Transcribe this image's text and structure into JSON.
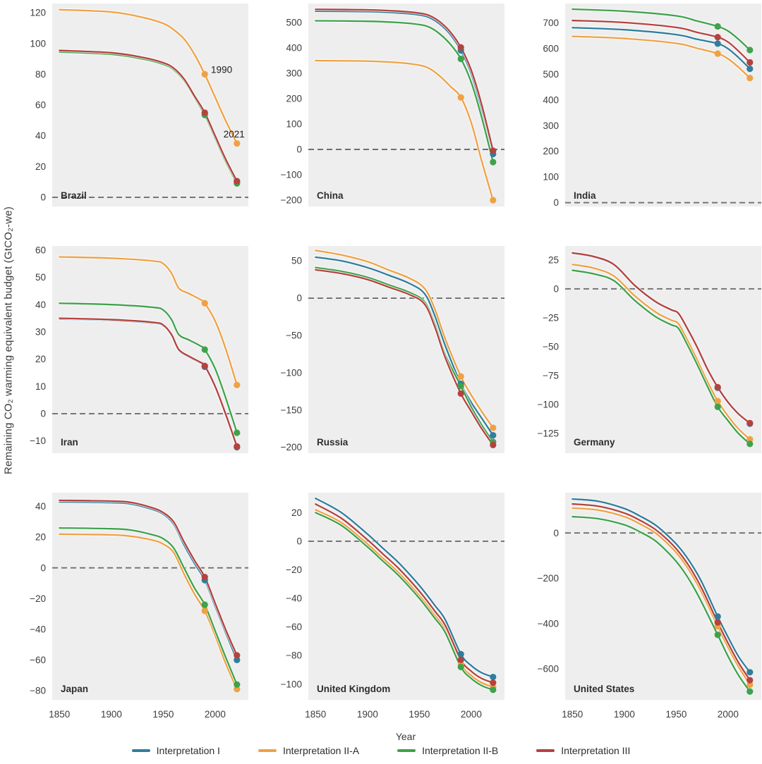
{
  "figure": {
    "ylabel": "Remaining CO₂ warming equivalent budget (GtCO₂-we)",
    "xlabel": "Year"
  },
  "legend": {
    "position": "bottom-center",
    "entries": [
      {
        "label": "Interpretation I",
        "color": "#2f7e9d"
      },
      {
        "label": "Interpretation II-A",
        "color": "#efa143"
      },
      {
        "label": "Interpretation II-B",
        "color": "#3fa24c"
      },
      {
        "label": "Interpretation III",
        "color": "#b5423e"
      }
    ]
  },
  "chart_data": {
    "type": "line",
    "layout": "3x3 small multiples",
    "xlabel": "Year",
    "ylabel": "Remaining CO₂ warming equivalent budget (GtCO₂-we)",
    "xlim": [
      1843,
      2032
    ],
    "xticks": [
      1850,
      1900,
      1950,
      2000
    ],
    "marker_years": [
      1990,
      2021
    ],
    "grid": false,
    "panel_bg": "#eeeeef",
    "zero_line_color": "#6e6e6e",
    "series_meta": [
      {
        "key": "I",
        "label": "Interpretation I",
        "color": "#2f7e9d"
      },
      {
        "key": "II-A",
        "label": "Interpretation II-A",
        "color": "#efa143"
      },
      {
        "key": "II-B",
        "label": "Interpretation II-B",
        "color": "#3fa24c"
      },
      {
        "key": "III",
        "label": "Interpretation III",
        "color": "#b5423e"
      }
    ],
    "panels": [
      {
        "name": "Brazil",
        "ylim": [
          -6,
          126
        ],
        "yticks": [
          0,
          20,
          40,
          60,
          80,
          100,
          120
        ],
        "x": [
          1850,
          1900,
          1930,
          1950,
          1960,
          1970,
          1980,
          1990,
          2000,
          2010,
          2021
        ],
        "series": {
          "I": [
            95.2,
            93.7,
            90.7,
            87.2,
            83.7,
            76.7,
            65.7,
            54.7,
            39.7,
            24.7,
            10.2
          ],
          "II-A": [
            122,
            120.5,
            117,
            113,
            109,
            103,
            93,
            80,
            65,
            50,
            35
          ],
          "II-B": [
            94.5,
            93,
            90,
            86.5,
            83,
            76,
            65,
            53.5,
            38.5,
            23.5,
            9
          ],
          "III": [
            95.5,
            94,
            91,
            87.5,
            84,
            77,
            66,
            55,
            40,
            25,
            10.5
          ]
        },
        "annotations": [
          {
            "text": "1990",
            "year": 1996,
            "value": 83
          },
          {
            "text": "2021",
            "year": 2008,
            "value": 41
          }
        ]
      },
      {
        "name": "China",
        "ylim": [
          -225,
          575
        ],
        "yticks": [
          -200,
          -100,
          0,
          100,
          200,
          300,
          400,
          500
        ],
        "x": [
          1850,
          1900,
          1930,
          1950,
          1960,
          1970,
          1980,
          1990,
          2000,
          2010,
          2021
        ],
        "series": {
          "I": [
            545,
            543,
            538,
            530,
            519,
            493,
            452,
            390,
            298,
            160,
            -18
          ],
          "II-A": [
            350,
            348,
            342,
            332,
            318,
            288,
            248,
            205,
            105,
            -45,
            -200
          ],
          "II-B": [
            507,
            505,
            500,
            492,
            481,
            454,
            414,
            357,
            264,
            127,
            -50
          ],
          "III": [
            552,
            550,
            545,
            537,
            527,
            502,
            462,
            402,
            312,
            177,
            -5
          ]
        },
        "annotations": []
      },
      {
        "name": "India",
        "ylim": [
          -15,
          775
        ],
        "yticks": [
          0,
          100,
          200,
          300,
          400,
          500,
          600,
          700
        ],
        "x": [
          1850,
          1900,
          1950,
          1970,
          1990,
          2000,
          2010,
          2021
        ],
        "series": {
          "I": [
            681,
            673,
            654,
            636,
            619,
            599,
            565,
            521
          ],
          "II-A": [
            647,
            639,
            620,
            601,
            580,
            560,
            527,
            485
          ],
          "II-B": [
            753,
            745,
            727,
            707,
            686,
            668,
            636,
            594
          ],
          "III": [
            709,
            701,
            682,
            663,
            644,
            625,
            590,
            546
          ]
        },
        "annotations": []
      },
      {
        "name": "Iran",
        "ylim": [
          -14.5,
          61.5
        ],
        "yticks": [
          -10,
          0,
          10,
          20,
          30,
          40,
          50,
          60
        ],
        "x": [
          1850,
          1900,
          1940,
          1950,
          1958,
          1965,
          1975,
          1985,
          1990,
          2000,
          2010,
          2021
        ],
        "series": {
          "I": [
            34.7,
            34.2,
            33.2,
            32.2,
            28.7,
            23.2,
            20.7,
            18.7,
            17.2,
            9.7,
            -0.3,
            -12.3
          ],
          "II-A": [
            57.5,
            57,
            56,
            55,
            51.5,
            46,
            44,
            42,
            40.5,
            34,
            24,
            10.5
          ],
          "II-B": [
            40.5,
            40,
            39,
            38,
            34.5,
            29,
            27,
            25,
            23.5,
            16.5,
            6,
            -7
          ],
          "III": [
            35,
            34.5,
            33.5,
            32.5,
            29,
            23.5,
            21,
            19,
            17.5,
            10,
            0,
            -12
          ]
        },
        "annotations": []
      },
      {
        "name": "Russia",
        "ylim": [
          -208,
          70
        ],
        "yticks": [
          -200,
          -150,
          -100,
          -50,
          0,
          50
        ],
        "x": [
          1850,
          1875,
          1900,
          1920,
          1940,
          1955,
          1965,
          1975,
          1990,
          2000,
          2010,
          2021
        ],
        "series": {
          "I": [
            55,
            50,
            41,
            31,
            20,
            6,
            -24,
            -64,
            -115,
            -140,
            -161,
            -184
          ],
          "II-A": [
            64,
            58,
            49,
            38,
            27,
            13,
            -15,
            -55,
            -105,
            -130,
            -152,
            -174
          ],
          "II-B": [
            41,
            36,
            28,
            18,
            8,
            -5,
            -35,
            -76,
            -118,
            -146,
            -170,
            -193
          ],
          "III": [
            38,
            33,
            25,
            15,
            5,
            -8,
            -39,
            -80,
            -128,
            -152,
            -175,
            -197
          ]
        },
        "annotations": []
      },
      {
        "name": "Germany",
        "ylim": [
          -142,
          37
        ],
        "yticks": [
          -125,
          -100,
          -75,
          -50,
          -25,
          0,
          25
        ],
        "x": [
          1850,
          1870,
          1890,
          1910,
          1930,
          1945,
          1952,
          1960,
          1970,
          1980,
          1990,
          2000,
          2010,
          2021
        ],
        "series": {
          "I": [
            30.5,
            27.5,
            20.5,
            2.5,
            -11.5,
            -18.5,
            -21.5,
            -33.5,
            -50.5,
            -69.5,
            -85.5,
            -98.5,
            -108.5,
            -116.5
          ],
          "II-A": [
            21,
            18,
            11,
            -6,
            -20,
            -27,
            -30,
            -43,
            -61,
            -80,
            -97,
            -110,
            -121,
            -130
          ],
          "II-B": [
            16,
            13,
            7,
            -10,
            -24,
            -31,
            -34,
            -47,
            -65,
            -84,
            -102,
            -114,
            -125,
            -134
          ],
          "III": [
            31,
            28,
            21,
            3,
            -11,
            -18,
            -21,
            -33,
            -50,
            -69,
            -85,
            -98,
            -108,
            -116
          ]
        },
        "annotations": []
      },
      {
        "name": "Japan",
        "ylim": [
          -86,
          49
        ],
        "yticks": [
          -80,
          -60,
          -40,
          -20,
          0,
          20,
          40
        ],
        "x": [
          1850,
          1900,
          1920,
          1940,
          1950,
          1960,
          1970,
          1980,
          1990,
          2000,
          2010,
          2021
        ],
        "series": {
          "I": [
            43,
            42.5,
            41.5,
            38,
            35,
            28.5,
            15,
            3,
            -8,
            -25,
            -42,
            -60
          ],
          "II-A": [
            22,
            21.5,
            20.5,
            18,
            15.5,
            10,
            -4,
            -17,
            -28,
            -44,
            -62,
            -79
          ],
          "II-B": [
            26,
            25.5,
            24.5,
            21.5,
            19,
            13,
            0,
            -13,
            -24,
            -41,
            -58,
            -76
          ],
          "III": [
            44,
            43.5,
            42.5,
            39,
            36,
            30,
            17,
            5,
            -6,
            -23,
            -40,
            -57
          ]
        },
        "annotations": []
      },
      {
        "name": "United Kingdom",
        "ylim": [
          -111,
          34
        ],
        "yticks": [
          -100,
          -80,
          -60,
          -40,
          -20,
          0,
          20
        ],
        "x": [
          1850,
          1875,
          1900,
          1915,
          1930,
          1950,
          1965,
          1975,
          1990,
          2000,
          2010,
          2021
        ],
        "series": {
          "I": [
            30,
            20,
            5,
            -5,
            -15,
            -31,
            -45,
            -55,
            -79,
            -87,
            -92,
            -95
          ],
          "II-A": [
            22,
            13,
            -2,
            -12,
            -22,
            -38,
            -52,
            -62,
            -86,
            -94,
            -99,
            -102
          ],
          "II-B": [
            20,
            11,
            -4,
            -14,
            -24,
            -40,
            -54,
            -64,
            -88,
            -96,
            -101,
            -104
          ],
          "III": [
            26,
            16,
            1,
            -9,
            -19,
            -35,
            -49,
            -59,
            -83,
            -91,
            -96,
            -99
          ]
        },
        "annotations": []
      },
      {
        "name": "United States",
        "ylim": [
          -737,
          178
        ],
        "yticks": [
          -600,
          -400,
          -200,
          0
        ],
        "x": [
          1850,
          1875,
          1900,
          1915,
          1930,
          1945,
          1955,
          1965,
          1975,
          1990,
          2000,
          2010,
          2021
        ],
        "series": {
          "I": [
            150,
            140,
            108,
            75,
            35,
            -25,
            -75,
            -140,
            -220,
            -369,
            -460,
            -545,
            -615
          ],
          "II-A": [
            110,
            101,
            72,
            40,
            0,
            -62,
            -115,
            -183,
            -266,
            -412,
            -505,
            -590,
            -670
          ],
          "II-B": [
            72,
            63,
            36,
            5,
            -35,
            -100,
            -155,
            -225,
            -310,
            -450,
            -545,
            -628,
            -700
          ],
          "III": [
            128,
            118,
            88,
            56,
            15,
            -45,
            -98,
            -165,
            -248,
            -395,
            -487,
            -572,
            -650
          ]
        },
        "annotations": []
      }
    ]
  }
}
